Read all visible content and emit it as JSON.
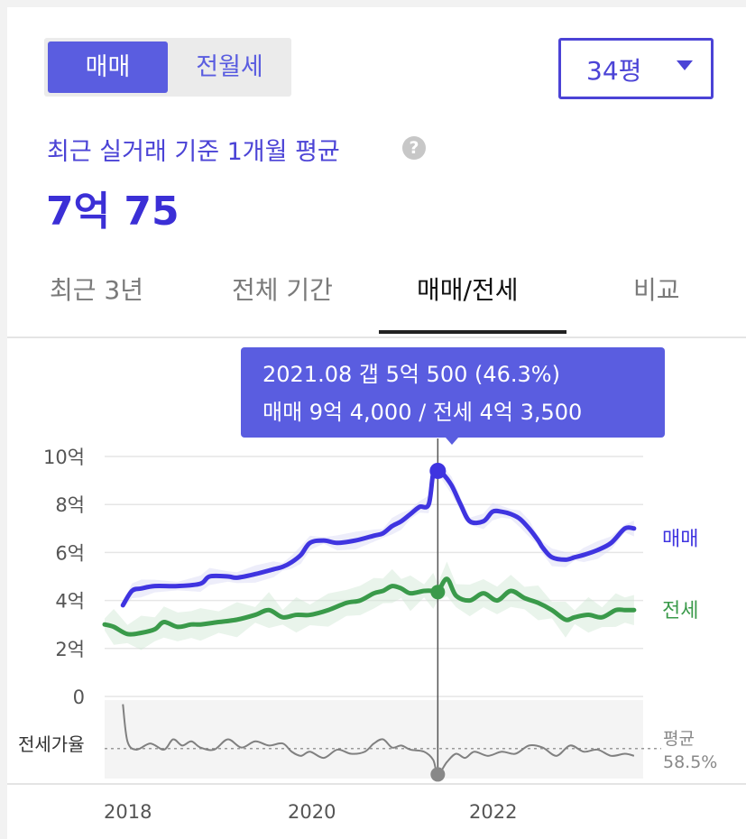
{
  "toggle": {
    "active": "매매",
    "inactive": "전월세"
  },
  "size_select": {
    "value": "34평"
  },
  "summary": {
    "subtitle": "최근 실거래 기준 1개월 평균",
    "price": "7억 75"
  },
  "tabs": [
    {
      "label": "최근 3년"
    },
    {
      "label": "전체 기간"
    },
    {
      "label": "매매/전세"
    },
    {
      "label": "비교"
    }
  ],
  "tooltip": {
    "line1": "2021.08  갭 5억 500 (46.3%)",
    "line2": "매매 9억 4,000 / 전세 4억 3,500"
  },
  "colors": {
    "accent": "#4b43d6",
    "sale": "#3f34e0",
    "jeonse": "#3a9a4a",
    "ratio": "#808080"
  },
  "chart_data": {
    "type": "line",
    "x_unit": "year",
    "xlim": [
      2017.95,
      2023.85
    ],
    "x_ticks": [
      2018,
      2020,
      2022
    ],
    "x_tick_labels": [
      "2018",
      "2020",
      "2022"
    ],
    "ylim": [
      0,
      10
    ],
    "y_ticks": [
      0,
      2,
      4,
      6,
      8,
      10
    ],
    "y_tick_labels": [
      "0",
      "2억",
      "4억",
      "6억",
      "8억",
      "10억"
    ],
    "grid": true,
    "highlight": {
      "x": 2021.6,
      "sale": 9.4,
      "jeonse": 4.35
    },
    "series": [
      {
        "name": "매매",
        "x": [
          2018.15,
          2018.25,
          2018.35,
          2018.5,
          2018.75,
          2019.0,
          2019.1,
          2019.3,
          2019.4,
          2019.6,
          2019.8,
          2019.9,
          2020.0,
          2020.1,
          2020.2,
          2020.35,
          2020.5,
          2020.7,
          2020.9,
          2021.0,
          2021.1,
          2021.2,
          2021.3,
          2021.4,
          2021.5,
          2021.55,
          2021.6,
          2021.65,
          2021.75,
          2021.85,
          2021.95,
          2022.1,
          2022.2,
          2022.3,
          2022.4,
          2022.5,
          2022.6,
          2022.7,
          2022.75,
          2022.85,
          2023.0,
          2023.1,
          2023.2,
          2023.35,
          2023.5,
          2023.65,
          2023.75
        ],
        "values": [
          3.8,
          4.4,
          4.5,
          4.6,
          4.6,
          4.7,
          5.0,
          5.0,
          4.95,
          5.1,
          5.3,
          5.4,
          5.6,
          5.9,
          6.4,
          6.5,
          6.4,
          6.5,
          6.7,
          6.8,
          7.1,
          7.3,
          7.6,
          7.9,
          8.0,
          9.3,
          9.4,
          9.3,
          8.8,
          8.0,
          7.3,
          7.3,
          7.7,
          7.7,
          7.6,
          7.4,
          7.0,
          6.5,
          6.2,
          5.8,
          5.7,
          5.8,
          5.9,
          6.1,
          6.4,
          7.0,
          7.0
        ]
      },
      {
        "name": "전세",
        "x": [
          2017.95,
          2018.05,
          2018.2,
          2018.35,
          2018.5,
          2018.6,
          2018.75,
          2018.9,
          2019.0,
          2019.2,
          2019.4,
          2019.6,
          2019.75,
          2019.9,
          2020.05,
          2020.2,
          2020.4,
          2020.6,
          2020.75,
          2020.9,
          2021.0,
          2021.1,
          2021.2,
          2021.3,
          2021.45,
          2021.55,
          2021.6,
          2021.7,
          2021.8,
          2021.95,
          2022.1,
          2022.25,
          2022.4,
          2022.55,
          2022.7,
          2022.85,
          2023.0,
          2023.1,
          2023.25,
          2023.4,
          2023.55,
          2023.65,
          2023.75
        ],
        "values": [
          3.0,
          2.9,
          2.6,
          2.65,
          2.8,
          3.1,
          2.9,
          3.0,
          3.0,
          3.1,
          3.2,
          3.4,
          3.6,
          3.3,
          3.4,
          3.4,
          3.6,
          3.9,
          4.0,
          4.3,
          4.4,
          4.6,
          4.5,
          4.3,
          4.4,
          4.4,
          4.35,
          4.9,
          4.2,
          4.0,
          4.3,
          4.0,
          4.4,
          4.1,
          3.9,
          3.6,
          3.2,
          3.3,
          3.4,
          3.3,
          3.6,
          3.6,
          3.6
        ]
      },
      {
        "name": "전세가율",
        "x": [
          2018.15,
          2018.2,
          2018.3,
          2018.45,
          2018.6,
          2018.7,
          2018.8,
          2018.9,
          2019.0,
          2019.15,
          2019.3,
          2019.45,
          2019.6,
          2019.75,
          2019.9,
          2020.0,
          2020.1,
          2020.2,
          2020.35,
          2020.5,
          2020.65,
          2020.8,
          2020.9,
          2021.0,
          2021.1,
          2021.2,
          2021.3,
          2021.45,
          2021.55,
          2021.6,
          2021.7,
          2021.8,
          2021.9,
          2022.0,
          2022.15,
          2022.3,
          2022.45,
          2022.6,
          2022.75,
          2022.9,
          2023.05,
          2023.2,
          2023.35,
          2023.5,
          2023.65,
          2023.75
        ],
        "values": [
          80,
          62,
          58,
          61,
          58,
          63,
          60,
          62,
          59,
          58,
          63,
          59,
          62,
          60,
          61,
          57,
          55,
          57,
          54,
          58,
          56,
          57,
          61,
          63,
          59,
          60,
          58,
          57,
          53,
          46,
          52,
          56,
          54,
          57,
          55,
          57,
          56,
          60,
          59,
          55,
          60,
          57,
          58,
          55,
          56,
          55
        ]
      }
    ],
    "ratio_average": {
      "label": "평균",
      "value": "58.5%"
    },
    "ratio_label": "전세가율"
  }
}
